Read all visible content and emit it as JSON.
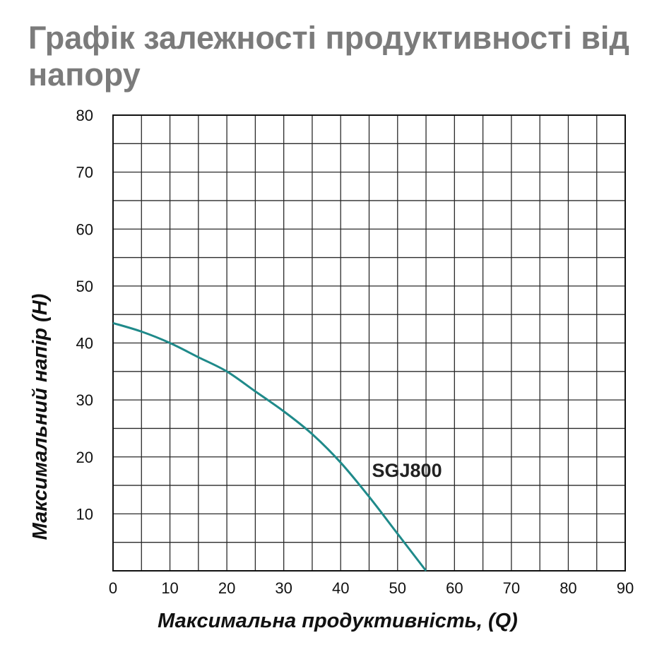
{
  "chart_data": {
    "type": "line",
    "title": "Графік залежності продуктивності від напору",
    "xlabel": "Максимальна продуктивність, (Q)",
    "ylabel": "Максимальний напір (H)",
    "xlim": [
      0,
      90
    ],
    "ylim": [
      0,
      80
    ],
    "x_ticks": [
      "0",
      "10",
      "20",
      "30",
      "40",
      "50",
      "60",
      "70",
      "80",
      "90"
    ],
    "y_ticks": [
      "10",
      "20",
      "30",
      "40",
      "50",
      "60",
      "70",
      "80"
    ],
    "grid": true,
    "grid_step": {
      "x": 5,
      "y": 5
    },
    "series": [
      {
        "name": "SGJ800",
        "color": "#1f8a8a",
        "x": [
          0,
          5,
          10,
          15,
          20,
          25,
          30,
          35,
          40,
          45,
          50,
          55
        ],
        "y": [
          43.5,
          42,
          40,
          37.5,
          35,
          31.5,
          28,
          24,
          19,
          13,
          6.5,
          0
        ]
      }
    ]
  }
}
